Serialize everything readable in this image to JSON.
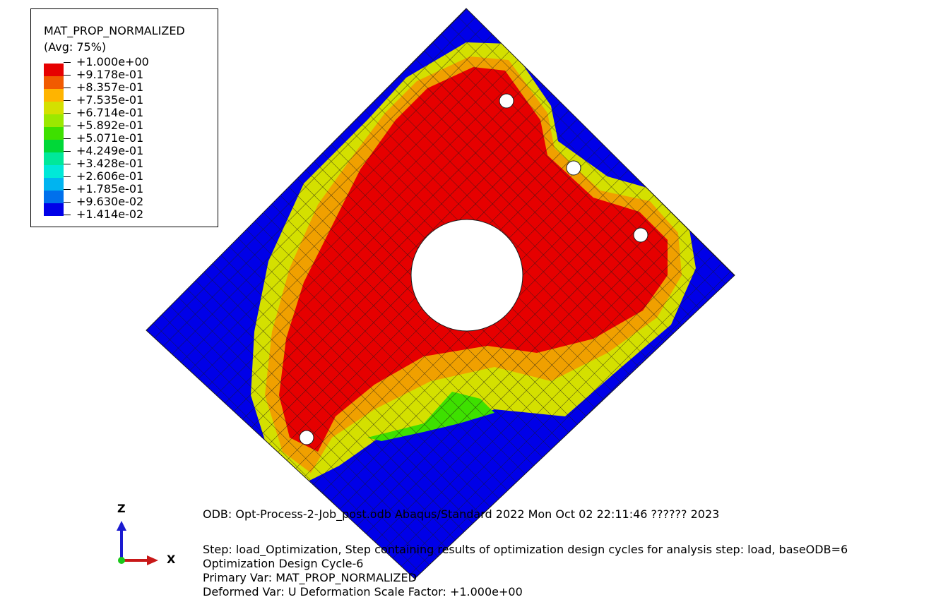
{
  "legend": {
    "title": "MAT_PROP_NORMALIZED",
    "subtitle": "(Avg: 75%)",
    "levels": [
      {
        "label": "+1.000e+00",
        "color": "#e60000"
      },
      {
        "label": "+9.178e-01",
        "color": "#f15a00"
      },
      {
        "label": "+8.357e-01",
        "color": "#ffb400"
      },
      {
        "label": "+7.535e-01",
        "color": "#d4e000"
      },
      {
        "label": "+6.714e-01",
        "color": "#9be800"
      },
      {
        "label": "+5.892e-01",
        "color": "#3ee000"
      },
      {
        "label": "+5.071e-01",
        "color": "#00d838"
      },
      {
        "label": "+4.249e-01",
        "color": "#00e89a"
      },
      {
        "label": "+3.428e-01",
        "color": "#00e8d8"
      },
      {
        "label": "+2.606e-01",
        "color": "#00b4f0"
      },
      {
        "label": "+1.785e-01",
        "color": "#0070ec"
      },
      {
        "label": "+9.630e-02",
        "color": "#0000e8"
      },
      {
        "label": "+1.414e-02",
        "color": null
      }
    ]
  },
  "info": {
    "odb_line": "ODB: Opt-Process-2-Job_post.odb    Abaqus/Standard 2022    Mon Oct 02 22:11:46 ?????? 2023",
    "step_line": "Step: load_Optimization, Step containing results of optimization design cycles for analysis step: load, baseODB=6",
    "cycle_line": "Optimization Design Cycle-6",
    "primary_line": "Primary Var: MAT_PROP_NORMALIZED",
    "deformed_line": "Deformed Var: U   Deformation Scale Factor: +1.000e+00"
  },
  "triad": {
    "z_label": "Z",
    "x_label": "X",
    "z_color": "#1a1ad0",
    "x_color": "#c81818",
    "origin_color": "#1ac81a"
  },
  "model": {
    "colors": {
      "void": "#0000e8",
      "mid": "#d4e000",
      "orange": "#f0a000",
      "solid": "#e60000",
      "green": "#3ee000",
      "hole": "#ffffff",
      "mesh": "#1a1a1a"
    }
  }
}
